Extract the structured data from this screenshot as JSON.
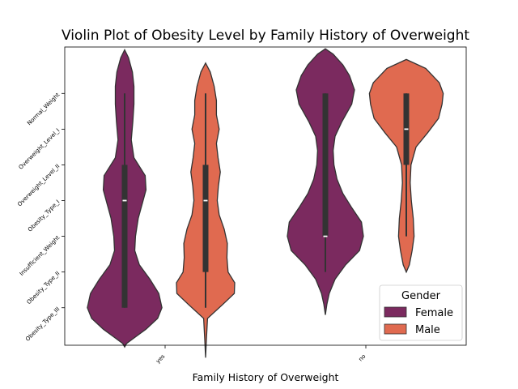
{
  "chart_data": {
    "type": "violin",
    "title": "Violin Plot of Obesity Level by Family History of Overweight",
    "xlabel": "Family History of Overweight",
    "ylabel": "",
    "categories": [
      "yes",
      "no"
    ],
    "y_categories": [
      "Normal_Weight",
      "Overweight_Level_I",
      "Overweight_Level_II",
      "Obesity_Type_I",
      "Insufficient_Weight",
      "Obesity_Type_II",
      "Obesity_Type_III"
    ],
    "y_codes": [
      0,
      1,
      2,
      3,
      4,
      5,
      6
    ],
    "ylim": [
      7.05,
      -1.3
    ],
    "legend": {
      "title": "Gender",
      "position": "lower right",
      "entries": [
        "Female",
        "Male"
      ]
    },
    "series": [
      {
        "name": "Female",
        "color": "#7b2a5f",
        "violins": [
          {
            "category": "yes",
            "min": 0,
            "q1": 2,
            "median": 3,
            "q3": 6,
            "max": 6,
            "density": [
              [
                -1.22,
                0
              ],
              [
                -1.0,
                0.1
              ],
              [
                -0.6,
                0.2
              ],
              [
                -0.2,
                0.24
              ],
              [
                0.3,
                0.24
              ],
              [
                0.8,
                0.21
              ],
              [
                1.3,
                0.17
              ],
              [
                1.8,
                0.24
              ],
              [
                2.3,
                0.53
              ],
              [
                2.7,
                0.55
              ],
              [
                3.1,
                0.45
              ],
              [
                3.5,
                0.35
              ],
              [
                4.0,
                0.28
              ],
              [
                4.4,
                0.26
              ],
              [
                4.8,
                0.38
              ],
              [
                5.2,
                0.65
              ],
              [
                5.6,
                0.88
              ],
              [
                6.0,
                0.96
              ],
              [
                6.3,
                0.85
              ],
              [
                6.6,
                0.55
              ],
              [
                6.8,
                0.3
              ],
              [
                7.0,
                0.05
              ],
              [
                7.1,
                0
              ]
            ]
          },
          {
            "category": "no",
            "min": 0,
            "q1": 0,
            "median": 4,
            "q3": 4,
            "max": 5,
            "density": [
              [
                -1.25,
                0
              ],
              [
                -1.1,
                0.2
              ],
              [
                -0.8,
                0.45
              ],
              [
                -0.5,
                0.62
              ],
              [
                -0.1,
                0.75
              ],
              [
                0.3,
                0.68
              ],
              [
                0.8,
                0.42
              ],
              [
                1.2,
                0.25
              ],
              [
                1.6,
                0.2
              ],
              [
                2.0,
                0.22
              ],
              [
                2.4,
                0.3
              ],
              [
                2.8,
                0.45
              ],
              [
                3.2,
                0.68
              ],
              [
                3.6,
                0.93
              ],
              [
                4.0,
                0.98
              ],
              [
                4.4,
                0.88
              ],
              [
                4.8,
                0.52
              ],
              [
                5.2,
                0.25
              ],
              [
                5.6,
                0.1
              ],
              [
                5.9,
                0.04
              ],
              [
                6.2,
                0
              ]
            ]
          }
        ]
      },
      {
        "name": "Male",
        "color": "#e06a50",
        "violins": [
          {
            "category": "yes",
            "min": 0,
            "q1": 2,
            "median": 3,
            "q3": 5,
            "max": 6,
            "density": [
              [
                -0.85,
                0
              ],
              [
                -0.6,
                0.12
              ],
              [
                -0.2,
                0.22
              ],
              [
                0.2,
                0.28
              ],
              [
                0.6,
                0.28
              ],
              [
                1.0,
                0.35
              ],
              [
                1.4,
                0.28
              ],
              [
                1.8,
                0.32
              ],
              [
                2.2,
                0.38
              ],
              [
                2.6,
                0.33
              ],
              [
                3.0,
                0.3
              ],
              [
                3.4,
                0.35
              ],
              [
                3.8,
                0.48
              ],
              [
                4.2,
                0.56
              ],
              [
                4.6,
                0.55
              ],
              [
                5.0,
                0.58
              ],
              [
                5.3,
                0.75
              ],
              [
                5.6,
                0.74
              ],
              [
                5.9,
                0.45
              ],
              [
                6.3,
                0.05
              ],
              [
                6.9,
                0.02
              ],
              [
                7.4,
                0
              ]
            ]
          },
          {
            "category": "no",
            "min": 0,
            "q1": 0,
            "median": 1,
            "q3": 2,
            "max": 4,
            "density": [
              [
                -0.95,
                0
              ],
              [
                -0.7,
                0.5
              ],
              [
                -0.3,
                0.85
              ],
              [
                0,
                0.95
              ],
              [
                0.3,
                0.92
              ],
              [
                0.7,
                0.83
              ],
              [
                1.1,
                0.55
              ],
              [
                1.5,
                0.25
              ],
              [
                2.0,
                0.12
              ],
              [
                2.5,
                0.1
              ],
              [
                3.0,
                0.13
              ],
              [
                3.5,
                0.18
              ],
              [
                4.0,
                0.2
              ],
              [
                4.4,
                0.15
              ],
              [
                4.8,
                0.08
              ],
              [
                5.0,
                0
              ]
            ]
          }
        ]
      }
    ]
  }
}
